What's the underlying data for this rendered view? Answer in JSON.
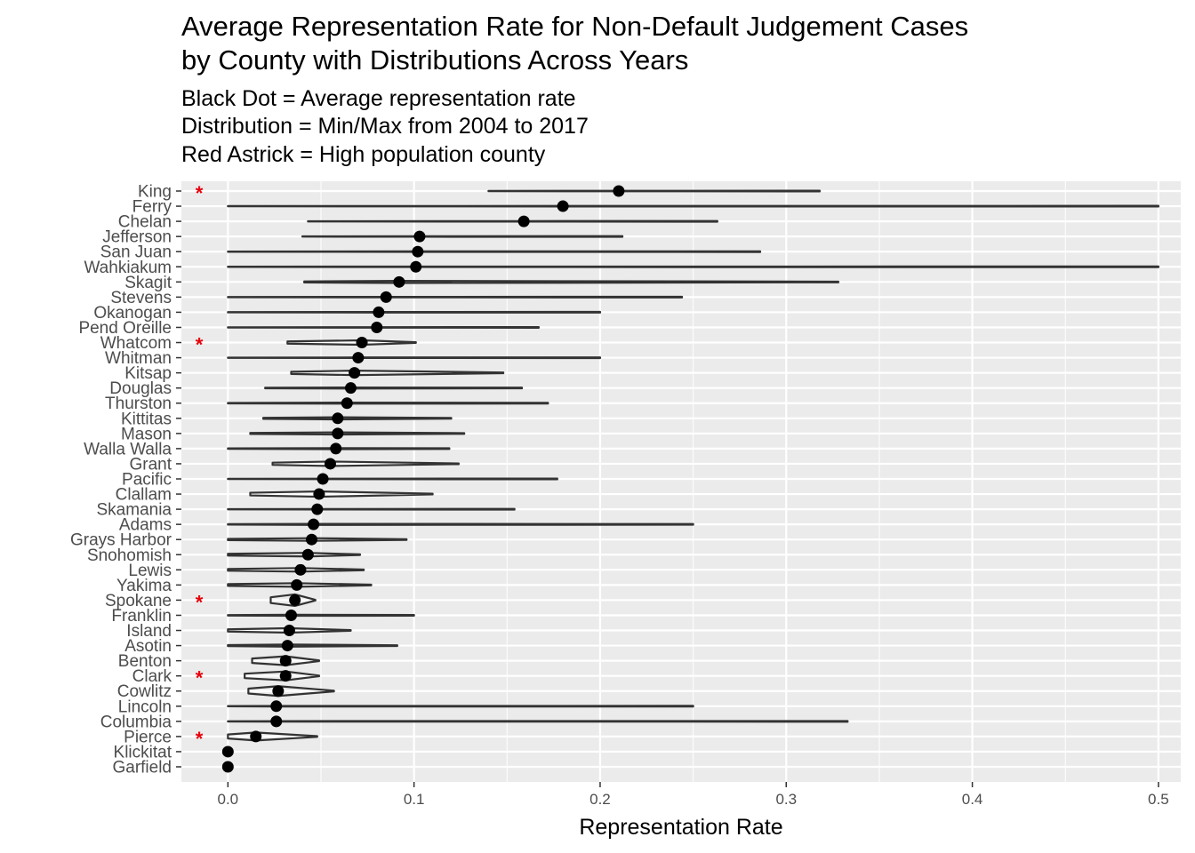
{
  "chart_data": {
    "type": "violin",
    "title": [
      "Average Representation Rate for Non-Default Judgement Cases",
      "by County with Distributions Across Years"
    ],
    "subtitle": [
      "Black Dot = Average representation rate",
      "Distribution = Min/Max from 2004 to 2017",
      "Red Astrick = High population county"
    ],
    "xlabel": "Representation Rate",
    "xlim": [
      -0.025,
      0.512
    ],
    "xticks": [
      0.0,
      0.1,
      0.2,
      0.3,
      0.4,
      0.5
    ],
    "xtick_labels": [
      "0.0",
      "0.1",
      "0.2",
      "0.3",
      "0.4",
      "0.5"
    ],
    "grid": true,
    "colors": {
      "panel": "#ebebeb",
      "grid": "#ffffff",
      "violin": "#333333",
      "dot": "#000000",
      "star": "#e8000b"
    },
    "marker_symbol": "*",
    "counties": [
      {
        "name": "King",
        "min": 0.14,
        "max": 0.318,
        "mean": 0.21,
        "width": 0.3,
        "high_pop": true
      },
      {
        "name": "Ferry",
        "min": 0.0,
        "max": 0.5,
        "mean": 0.18,
        "width": 0.3,
        "high_pop": false
      },
      {
        "name": "Chelan",
        "min": 0.043,
        "max": 0.263,
        "mean": 0.159,
        "width": 0.3,
        "high_pop": false
      },
      {
        "name": "Jefferson",
        "min": 0.04,
        "max": 0.212,
        "mean": 0.103,
        "width": 0.3,
        "high_pop": false
      },
      {
        "name": "San Juan",
        "min": 0.0,
        "max": 0.286,
        "mean": 0.102,
        "width": 0.3,
        "high_pop": false
      },
      {
        "name": "Wahkiakum",
        "min": 0.0,
        "max": 0.5,
        "mean": 0.101,
        "width": 0.3,
        "high_pop": false
      },
      {
        "name": "Skagit",
        "min": 0.041,
        "max": 0.328,
        "mean": 0.092,
        "width": 1.2,
        "high_pop": false
      },
      {
        "name": "Stevens",
        "min": 0.0,
        "max": 0.244,
        "mean": 0.085,
        "width": 0.3,
        "high_pop": false
      },
      {
        "name": "Okanogan",
        "min": 0.0,
        "max": 0.2,
        "mean": 0.081,
        "width": 0.3,
        "high_pop": false
      },
      {
        "name": "Pend Oreille",
        "min": 0.0,
        "max": 0.167,
        "mean": 0.08,
        "width": 0.3,
        "high_pop": false
      },
      {
        "name": "Whatcom",
        "min": 0.032,
        "max": 0.101,
        "mean": 0.072,
        "width": 2.5,
        "high_pop": true
      },
      {
        "name": "Whitman",
        "min": 0.0,
        "max": 0.2,
        "mean": 0.07,
        "width": 0.3,
        "high_pop": false
      },
      {
        "name": "Kitsap",
        "min": 0.034,
        "max": 0.148,
        "mean": 0.068,
        "width": 2.5,
        "high_pop": false
      },
      {
        "name": "Douglas",
        "min": 0.02,
        "max": 0.158,
        "mean": 0.066,
        "width": 0.6,
        "high_pop": false
      },
      {
        "name": "Thurston",
        "min": 0.0,
        "max": 0.172,
        "mean": 0.064,
        "width": 0.6,
        "high_pop": false
      },
      {
        "name": "Kittitas",
        "min": 0.019,
        "max": 0.12,
        "mean": 0.059,
        "width": 1.2,
        "high_pop": false
      },
      {
        "name": "Mason",
        "min": 0.012,
        "max": 0.127,
        "mean": 0.059,
        "width": 1.2,
        "high_pop": false
      },
      {
        "name": "Walla Walla",
        "min": 0.0,
        "max": 0.119,
        "mean": 0.058,
        "width": 0.6,
        "high_pop": false
      },
      {
        "name": "Grant",
        "min": 0.024,
        "max": 0.124,
        "mean": 0.055,
        "width": 2.5,
        "high_pop": false
      },
      {
        "name": "Pacific",
        "min": 0.0,
        "max": 0.177,
        "mean": 0.051,
        "width": 0.3,
        "high_pop": false
      },
      {
        "name": "Clallam",
        "min": 0.012,
        "max": 0.11,
        "mean": 0.049,
        "width": 3.0,
        "high_pop": false
      },
      {
        "name": "Skamania",
        "min": 0.0,
        "max": 0.154,
        "mean": 0.048,
        "width": 0.3,
        "high_pop": false
      },
      {
        "name": "Adams",
        "min": 0.0,
        "max": 0.25,
        "mean": 0.046,
        "width": 0.6,
        "high_pop": false
      },
      {
        "name": "Grays Harbor",
        "min": 0.0,
        "max": 0.096,
        "mean": 0.045,
        "width": 1.5,
        "high_pop": false
      },
      {
        "name": "Snohomish",
        "min": 0.0,
        "max": 0.071,
        "mean": 0.043,
        "width": 2.0,
        "high_pop": false
      },
      {
        "name": "Lewis",
        "min": 0.0,
        "max": 0.073,
        "mean": 0.039,
        "width": 2.0,
        "high_pop": false
      },
      {
        "name": "Yakima",
        "min": 0.0,
        "max": 0.077,
        "mean": 0.037,
        "width": 2.0,
        "high_pop": false
      },
      {
        "name": "Spokane",
        "min": 0.023,
        "max": 0.047,
        "mean": 0.036,
        "width": 6.5,
        "high_pop": true
      },
      {
        "name": "Franklin",
        "min": 0.0,
        "max": 0.1,
        "mean": 0.034,
        "width": 0.6,
        "high_pop": false
      },
      {
        "name": "Island",
        "min": 0.0,
        "max": 0.066,
        "mean": 0.033,
        "width": 2.5,
        "high_pop": false
      },
      {
        "name": "Asotin",
        "min": 0.0,
        "max": 0.091,
        "mean": 0.032,
        "width": 1.2,
        "high_pop": false
      },
      {
        "name": "Benton",
        "min": 0.013,
        "max": 0.049,
        "mean": 0.031,
        "width": 5.0,
        "high_pop": false
      },
      {
        "name": "Clark",
        "min": 0.009,
        "max": 0.049,
        "mean": 0.031,
        "width": 5.0,
        "high_pop": true
      },
      {
        "name": "Cowlitz",
        "min": 0.011,
        "max": 0.057,
        "mean": 0.027,
        "width": 5.5,
        "high_pop": false
      },
      {
        "name": "Lincoln",
        "min": 0.0,
        "max": 0.25,
        "mean": 0.026,
        "width": 0.3,
        "high_pop": false
      },
      {
        "name": "Columbia",
        "min": 0.0,
        "max": 0.333,
        "mean": 0.026,
        "width": 0.3,
        "high_pop": false
      },
      {
        "name": "Pierce",
        "min": 0.0,
        "max": 0.048,
        "mean": 0.015,
        "width": 4.5,
        "high_pop": true
      },
      {
        "name": "Klickitat",
        "min": 0.0,
        "max": 0.0,
        "mean": 0.0,
        "width": 0.0,
        "high_pop": false
      },
      {
        "name": "Garfield",
        "min": 0.0,
        "max": 0.0,
        "mean": 0.0,
        "width": 0.0,
        "high_pop": false
      }
    ]
  }
}
